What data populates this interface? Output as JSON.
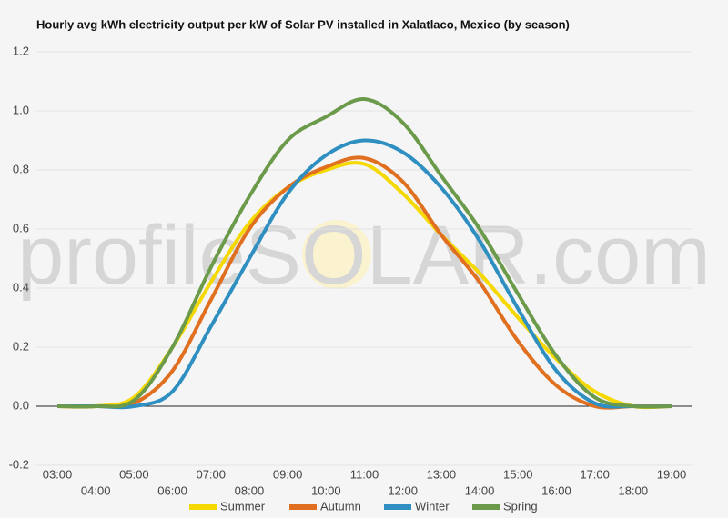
{
  "chart_data": {
    "type": "line",
    "title": "Hourly avg kWh electricity output per kW of Solar PV installed in Xalatlaco, Mexico (by season)",
    "watermark": "profileSOLAR.com",
    "categories": [
      "03:00",
      "04:00",
      "05:00",
      "06:00",
      "07:00",
      "08:00",
      "09:00",
      "10:00",
      "11:00",
      "12:00",
      "13:00",
      "14:00",
      "15:00",
      "16:00",
      "17:00",
      "18:00",
      "19:00"
    ],
    "series": [
      {
        "name": "Summer",
        "color": "#f5d800",
        "values": [
          0,
          0,
          0.03,
          0.2,
          0.42,
          0.62,
          0.74,
          0.8,
          0.82,
          0.72,
          0.58,
          0.45,
          0.3,
          0.16,
          0.05,
          0,
          0
        ]
      },
      {
        "name": "Autumn",
        "color": "#e07020",
        "values": [
          0,
          0,
          0.01,
          0.12,
          0.36,
          0.6,
          0.74,
          0.81,
          0.84,
          0.76,
          0.58,
          0.42,
          0.22,
          0.07,
          0,
          0,
          0
        ]
      },
      {
        "name": "Winter",
        "color": "#2e8fc0",
        "values": [
          0,
          0,
          0,
          0.05,
          0.27,
          0.5,
          0.72,
          0.85,
          0.9,
          0.86,
          0.74,
          0.56,
          0.33,
          0.12,
          0.01,
          0,
          0
        ]
      },
      {
        "name": "Spring",
        "color": "#6b9a4a",
        "values": [
          0,
          0,
          0.02,
          0.2,
          0.47,
          0.71,
          0.9,
          0.98,
          1.04,
          0.96,
          0.78,
          0.6,
          0.38,
          0.17,
          0.03,
          0,
          0
        ]
      }
    ],
    "ylim": [
      -0.2,
      1.2
    ],
    "yticks": [
      -0.2,
      {
        "value": 0,
        "label": "0.0"
      },
      0.2,
      0.4,
      0.6,
      0.8,
      {
        "value": 1,
        "label": "1.0"
      },
      1.2
    ],
    "grid": true
  }
}
